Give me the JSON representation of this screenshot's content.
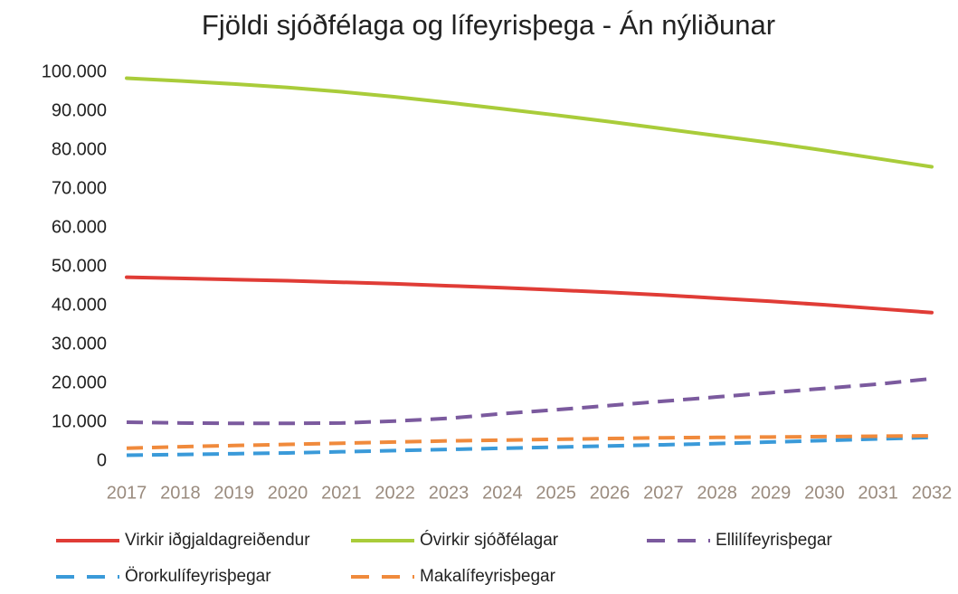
{
  "chart_data": {
    "type": "line",
    "title": "Fjöldi sjóðfélaga og lífeyrisþega - Án nýliðunar",
    "categories": [
      "2017",
      "2018",
      "2019",
      "2020",
      "2021",
      "2022",
      "2023",
      "2024",
      "2025",
      "2026",
      "2027",
      "2028",
      "2029",
      "2030",
      "2031",
      "2032"
    ],
    "series": [
      {
        "name": "Virkir iðgjaldagreiðendur",
        "color": "#e03c36",
        "dashed": false,
        "values": [
          47300,
          47000,
          46700,
          46400,
          46000,
          45600,
          45100,
          44600,
          44000,
          43400,
          42700,
          41900,
          41100,
          40200,
          39200,
          38200
        ]
      },
      {
        "name": "Óvirkir sjóðfélagar",
        "color": "#a9cc3a",
        "dashed": false,
        "values": [
          98500,
          97800,
          97000,
          96100,
          95000,
          93700,
          92200,
          90600,
          89000,
          87300,
          85500,
          83700,
          81900,
          79900,
          77800,
          75700
        ]
      },
      {
        "name": "Ellilífeyrisþegar",
        "color": "#7b5a9e",
        "dashed": true,
        "values": [
          10000,
          9800,
          9700,
          9700,
          9800,
          10300,
          11000,
          12200,
          13200,
          14300,
          15400,
          16500,
          17600,
          18700,
          19800,
          21200
        ]
      },
      {
        "name": "Örorkulífeyrisþegar",
        "color": "#3a9ad9",
        "dashed": true,
        "values": [
          1500,
          1700,
          1900,
          2100,
          2400,
          2700,
          3000,
          3300,
          3600,
          3900,
          4200,
          4500,
          4900,
          5300,
          5700,
          6100
        ]
      },
      {
        "name": "Makalífeyrisþegar",
        "color": "#f08a3c",
        "dashed": true,
        "values": [
          3300,
          3700,
          4000,
          4300,
          4600,
          4900,
          5200,
          5400,
          5600,
          5800,
          6000,
          6100,
          6200,
          6300,
          6400,
          6500
        ]
      }
    ],
    "ylim": [
      0,
      100000
    ],
    "yticks": [
      0,
      {
        "value": 10000,
        "label": "10.000"
      },
      {
        "value": 20000,
        "label": "20.000"
      },
      {
        "value": 30000,
        "label": "30.000"
      },
      {
        "value": 40000,
        "label": "40.000"
      },
      {
        "value": 50000,
        "label": "50.000"
      },
      {
        "value": 60000,
        "label": "60.000"
      },
      {
        "value": 70000,
        "label": "70.000"
      },
      {
        "value": 80000,
        "label": "80.000"
      },
      {
        "value": 90000,
        "label": "90.000"
      },
      {
        "value": 100000,
        "label": "100.000"
      }
    ],
    "grid": false,
    "legend": "bottom"
  }
}
